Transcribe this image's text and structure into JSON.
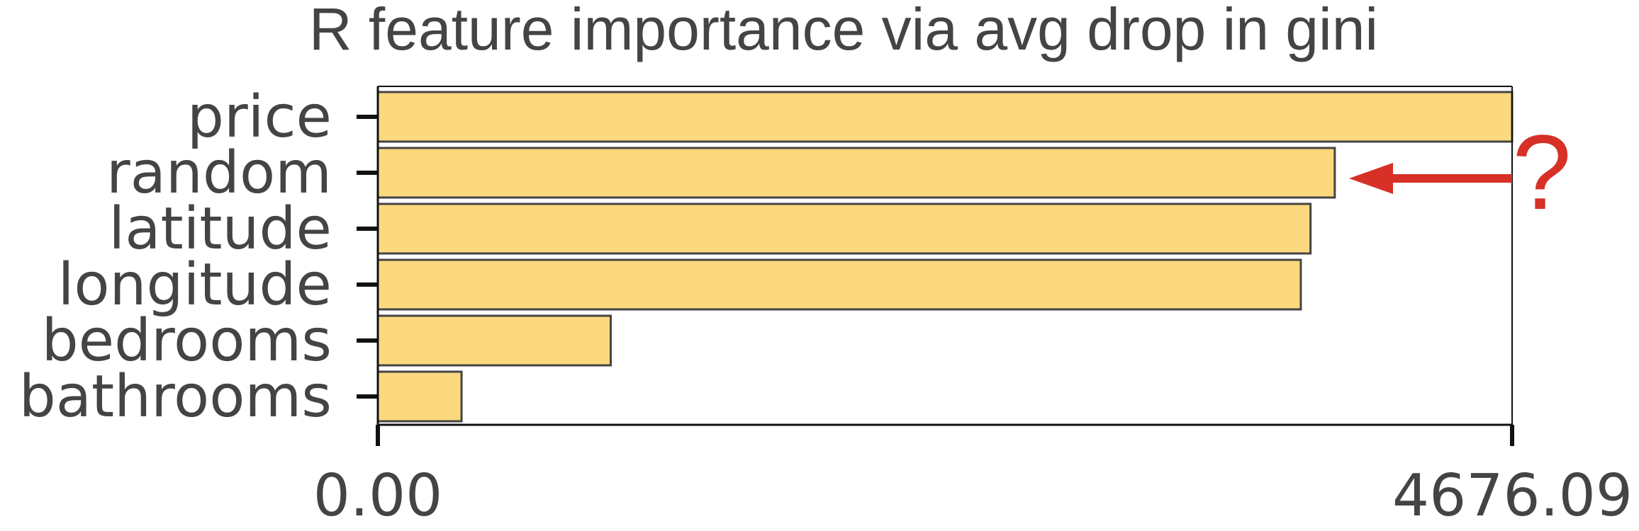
{
  "chart_data": {
    "type": "bar",
    "orientation": "horizontal",
    "title": "R feature importance via avg drop in gini",
    "categories": [
      "price",
      "random",
      "latitude",
      "longitude",
      "bedrooms",
      "bathrooms"
    ],
    "values": [
      4676.09,
      3945,
      3845,
      3805,
      960,
      345
    ],
    "xlim": [
      0,
      4676.09
    ],
    "x_tick_labels": [
      "0.00",
      "4676.09"
    ],
    "xlabel": "",
    "ylabel": "",
    "grid": false,
    "colors": {
      "bar_fill": "#fcd97e",
      "bar_edge": "#444444",
      "text": "#444444",
      "annotation": "#d63027"
    },
    "annotation": {
      "text": "?",
      "points_to": "random",
      "arrow_color": "#d63027"
    }
  }
}
